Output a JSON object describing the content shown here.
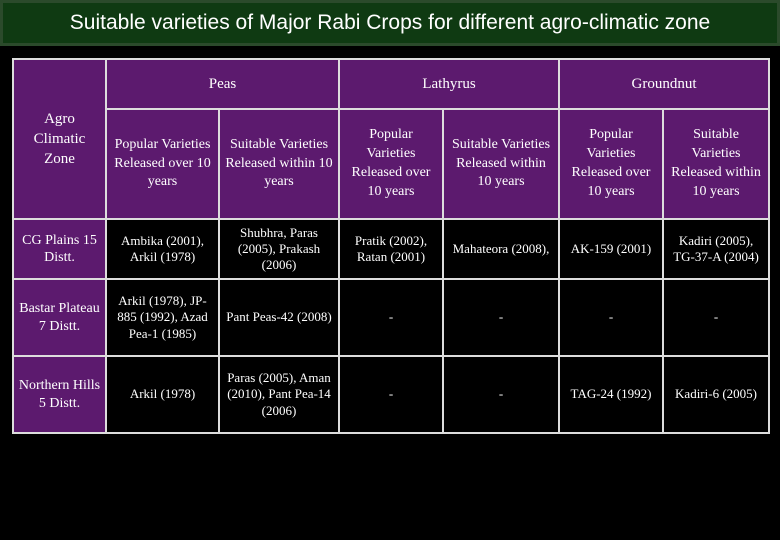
{
  "header": {
    "title": "Suitable varieties of Major Rabi Crops for different agro-climatic zone"
  },
  "table": {
    "zone_header": "Agro Climatic Zone",
    "crops": [
      "Peas",
      "Lathyrus",
      "Groundnut"
    ],
    "sub_headers": [
      "Popular Varieties Released over 10 years",
      "Suitable Varieties Released within 10 years",
      "Popular Varieties Released over 10 years",
      "Suitable Varieties Released within 10 years",
      "Popular Varieties Released over 10 years",
      "Suitable Varieties Released within 10 years"
    ],
    "rows": [
      [
        "CG Plains 15 Distt.",
        "Ambika (2001), Arkil (1978)",
        "Shubhra, Paras (2005), Prakash (2006)",
        "Pratik (2002), Ratan (2001)",
        "Mahateora (2008),",
        "AK-159 (2001)",
        "Kadiri (2005), TG-37-A (2004)"
      ],
      [
        "Bastar Plateau 7 Distt.",
        "Arkil (1978), JP-885 (1992), Azad Pea-1 (1985)",
        "Pant Peas-42 (2008)",
        "-",
        "-",
        "-",
        "-"
      ],
      [
        "Northern Hills 5 Distt.",
        "Arkil (1978)",
        "Paras (2005), Aman (2010), Pant Pea-14 (2006)",
        "-",
        "-",
        "TAG-24 (1992)",
        "Kadiri-6 (2005)"
      ]
    ]
  }
}
